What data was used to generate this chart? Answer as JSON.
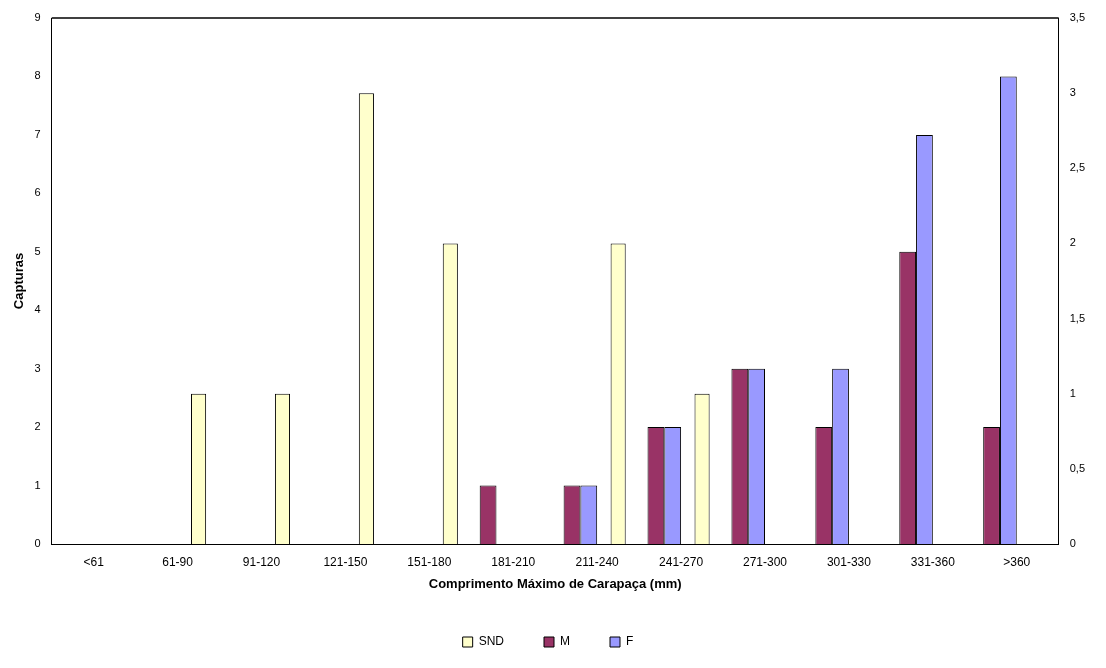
{
  "chart_data": {
    "type": "bar",
    "xlabel": "Comprimento Máximo de Carapaça (mm)",
    "ylabel": "Capturas",
    "categories": [
      "<61",
      "61-90",
      "91-120",
      "121-150",
      "151-180",
      "181-210",
      "211-240",
      "241-270",
      "271-300",
      "301-330",
      "331-360",
      ">360"
    ],
    "series": [
      {
        "name": "M",
        "color": "#993366",
        "values": [
          0,
          0,
          0,
          0,
          0,
          1,
          1,
          2,
          3,
          2,
          5,
          2
        ]
      },
      {
        "name": "F",
        "color": "#9999ff",
        "values": [
          0,
          0,
          0,
          0,
          0,
          0,
          1,
          2,
          3,
          3,
          7,
          8
        ]
      },
      {
        "name": "SND",
        "color": "#ffffcc",
        "axis": "y2",
        "values": [
          0,
          1,
          1,
          3,
          2,
          0,
          2,
          1,
          0,
          0,
          0,
          0
        ]
      }
    ],
    "ylim": [
      0,
      9
    ],
    "yticks": [
      0,
      1,
      2,
      3,
      4,
      5,
      6,
      7,
      8,
      9
    ],
    "y2lim": [
      0,
      3.5
    ],
    "y2ticks": [
      0,
      {
        "value": 0.5,
        "label": "0,5"
      },
      1,
      {
        "value": 1.5,
        "label": "1,5"
      },
      2,
      {
        "value": 2.5,
        "label": "2,5"
      },
      3,
      {
        "value": 3.5,
        "label": "3,5"
      }
    ],
    "grid": false,
    "legend": "bottom"
  }
}
